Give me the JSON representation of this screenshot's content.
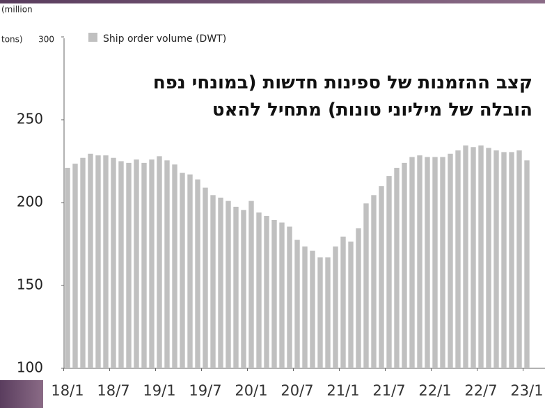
{
  "chart_data": {
    "type": "bar",
    "title": [
      "קצב ההזמנות של ספינות חדשות (במונחי נפח",
      "הובלה של מיליוני טונות) מתחיל להאט"
    ],
    "y_label": [
      "(million",
      "tons)"
    ],
    "categories": [
      "18/1",
      null,
      null,
      null,
      null,
      null,
      "18/7",
      null,
      null,
      null,
      null,
      null,
      "19/1",
      null,
      null,
      null,
      null,
      null,
      "19/7",
      null,
      null,
      null,
      null,
      null,
      "20/1",
      null,
      null,
      null,
      null,
      null,
      "20/7",
      null,
      null,
      null,
      null,
      null,
      "21/1",
      null,
      null,
      null,
      null,
      null,
      "21/7",
      null,
      null,
      null,
      null,
      null,
      "22/1",
      null,
      null,
      null,
      null,
      null,
      "22/7",
      null,
      null,
      null,
      null,
      null,
      "23/1"
    ],
    "series": [
      {
        "name": "Ship order volume (DWT)",
        "color": "#c0c0c0",
        "values": [
          221,
          223.5,
          227,
          229.5,
          228.5,
          228.5,
          227,
          225,
          224,
          226,
          224,
          226,
          228,
          225.5,
          223,
          218,
          217,
          214,
          209,
          204.5,
          203,
          201,
          197.5,
          195.5,
          201,
          194,
          192,
          189.5,
          188,
          185.5,
          177.5,
          173.5,
          171,
          167,
          167,
          173.5,
          179.5,
          176.5,
          184.5,
          199.5,
          204.5,
          210,
          216,
          221,
          224,
          227.5,
          228.5,
          227.5,
          227.5,
          227.5,
          229.5,
          231.5,
          234.5,
          233.5,
          234.5,
          233,
          231.5,
          230.5,
          230.5,
          231.5,
          225.5
        ]
      }
    ],
    "ylim": [
      100,
      300
    ],
    "yticks": [
      100,
      150,
      200,
      250,
      300
    ],
    "grid": false
  }
}
